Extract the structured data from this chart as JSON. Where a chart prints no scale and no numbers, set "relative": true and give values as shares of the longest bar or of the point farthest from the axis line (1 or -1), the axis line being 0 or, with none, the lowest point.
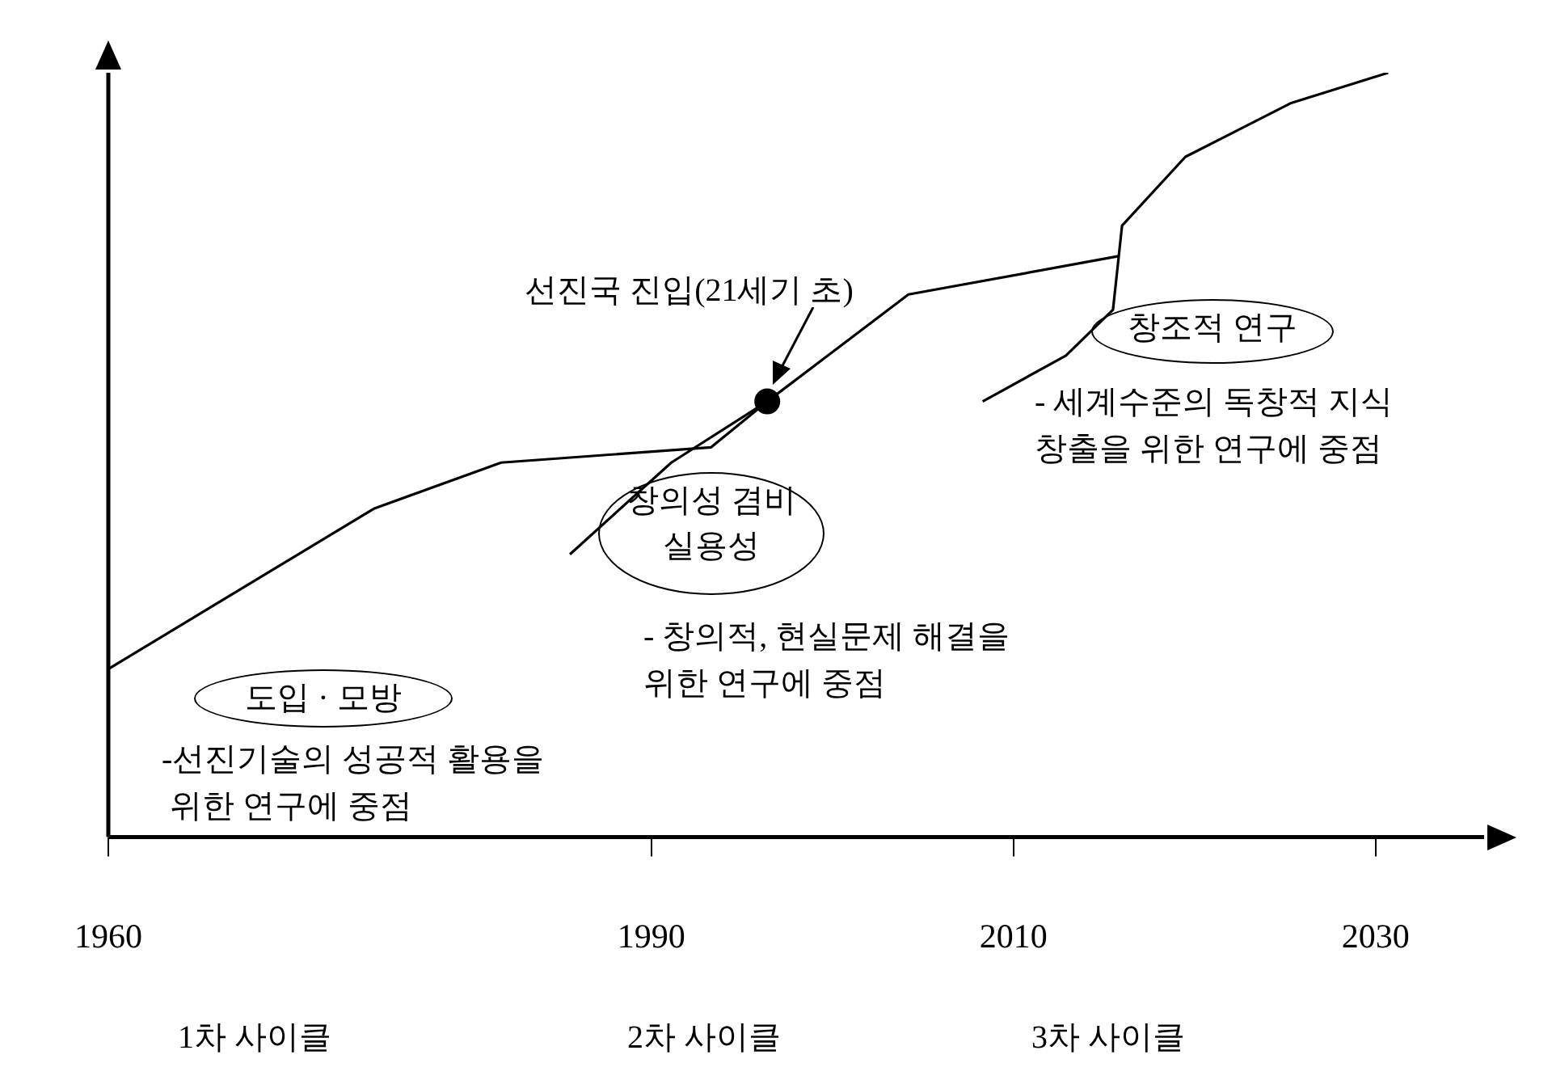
{
  "chart_data": {
    "type": "line",
    "relative": true,
    "xlim": [
      1960,
      2036
    ],
    "xticks": [
      1960,
      1990,
      2010,
      2030
    ],
    "legend": false,
    "grid": false,
    "marker": "none",
    "line_style": "solid",
    "series": [
      {
        "color": "#000000",
        "x": [
          1960,
          1974.7,
          1981.7,
          1993.3,
          1996.4
        ],
        "values": [
          0.22,
          0.43,
          0.49,
          0.51,
          0.57
        ]
      },
      {
        "color": "#000000",
        "x": [
          1985.5,
          1991.1,
          1996.4,
          2004.2,
          2015.8
        ],
        "values": [
          0.37,
          0.49,
          0.57,
          0.71,
          0.76
        ]
      },
      {
        "color": "#000000",
        "x": [
          2008.3,
          2012.9,
          2015.5,
          2016.0,
          2019.5,
          2025.3,
          2030.7
        ],
        "values": [
          0.57,
          0.63,
          0.69,
          0.8,
          0.89,
          0.96,
          1
        ]
      }
    ],
    "annotations": [
      "도입 · 모방",
      "-선진기술의 성공적 활용을\n 위한 연구에 중점",
      "창의성 겸비\n실용성",
      "- 창의적, 현실문제 해결을\n위한 연구에 중점",
      "창조적 연구",
      "- 세계수준의 독창적 지식\n창출을 위한 연구에 중점",
      {
        "text": "선진국 진입(21세기 초)",
        "x": 1996.4,
        "y": 0.57
      },
      "1차 사이클",
      "2차 사이클",
      "3차 사이클"
    ]
  }
}
